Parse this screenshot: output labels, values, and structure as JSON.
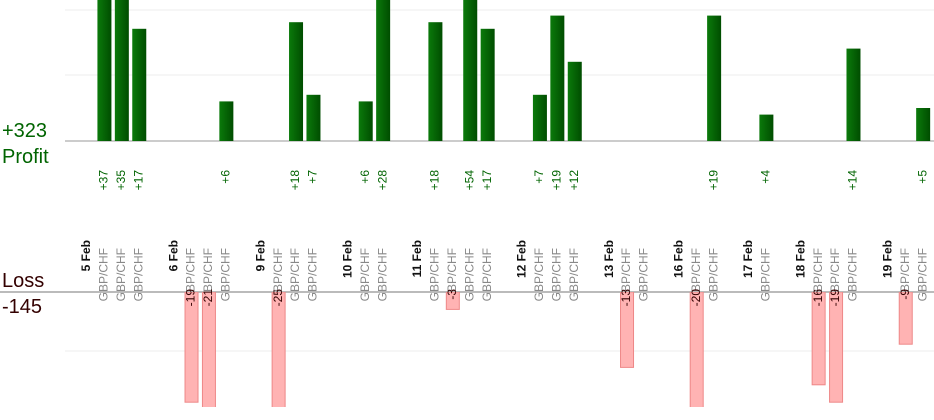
{
  "profit": {
    "total": {
      "value": 323,
      "label": "+323"
    },
    "label": "Profit"
  },
  "loss": {
    "total": -145,
    "label": "Loss"
  },
  "days": [
    {
      "date": "5 Feb",
      "trades": [
        {
          "pair": "GBP/CHF",
          "value": 37,
          "label": "+37"
        },
        {
          "pair": "GBP/CHF",
          "value": 35,
          "label": "+35"
        },
        {
          "pair": "GBP/CHF",
          "value": 17,
          "label": "+17"
        }
      ]
    },
    {
      "date": "6 Feb",
      "trades": [
        {
          "pair": "GBP/CHF",
          "value": -19
        },
        {
          "pair": "GBP/CHF",
          "value": -21
        },
        {
          "pair": "GBP/CHF",
          "value": 6,
          "label": "+6"
        }
      ]
    },
    {
      "date": "9 Feb",
      "trades": [
        {
          "pair": "GBP/CHF",
          "value": -25
        },
        {
          "pair": "GBP/CHF",
          "value": 18,
          "label": "+18"
        },
        {
          "pair": "GBP/CHF",
          "value": 7,
          "label": "+7"
        }
      ]
    },
    {
      "date": "10 Feb",
      "trades": [
        {
          "pair": "GBP/CHF",
          "value": 6,
          "label": "+6"
        },
        {
          "pair": "GBP/CHF",
          "value": 28,
          "label": "+28"
        }
      ]
    },
    {
      "date": "11 Feb",
      "trades": [
        {
          "pair": "GBP/CHF",
          "value": 18,
          "label": "+18"
        },
        {
          "pair": "GBP/CHF",
          "value": -3
        },
        {
          "pair": "GBP/CHF",
          "value": 54,
          "label": "+54"
        },
        {
          "pair": "GBP/CHF",
          "value": 17,
          "label": "+17"
        }
      ]
    },
    {
      "date": "12 Feb",
      "trades": [
        {
          "pair": "GBP/CHF",
          "value": 7,
          "label": "+7"
        },
        {
          "pair": "GBP/CHF",
          "value": 19,
          "label": "+19"
        },
        {
          "pair": "GBP/CHF",
          "value": 12,
          "label": "+12"
        }
      ]
    },
    {
      "date": "13 Feb",
      "trades": [
        {
          "pair": "GBP/CHF",
          "value": -13
        },
        {
          "pair": "GBP/CHF",
          "value": 0
        }
      ]
    },
    {
      "date": "16 Feb",
      "trades": [
        {
          "pair": "GBP/CHF",
          "value": -20
        },
        {
          "pair": "GBP/CHF",
          "value": 19,
          "label": "+19"
        }
      ]
    },
    {
      "date": "17 Feb",
      "trades": [
        {
          "pair": "GBP/CHF",
          "value": 4,
          "label": "+4"
        }
      ]
    },
    {
      "date": "18 Feb",
      "trades": [
        {
          "pair": "GBP/CHF",
          "value": -16
        },
        {
          "pair": "GBP/CHF",
          "value": -19
        },
        {
          "pair": "GBP/CHF",
          "value": 14,
          "label": "+14"
        }
      ]
    },
    {
      "date": "19 Feb",
      "trades": [
        {
          "pair": "GBP/CHF",
          "value": -9
        },
        {
          "pair": "GBP/CHF",
          "value": 5,
          "label": "+5"
        }
      ]
    }
  ]
}
